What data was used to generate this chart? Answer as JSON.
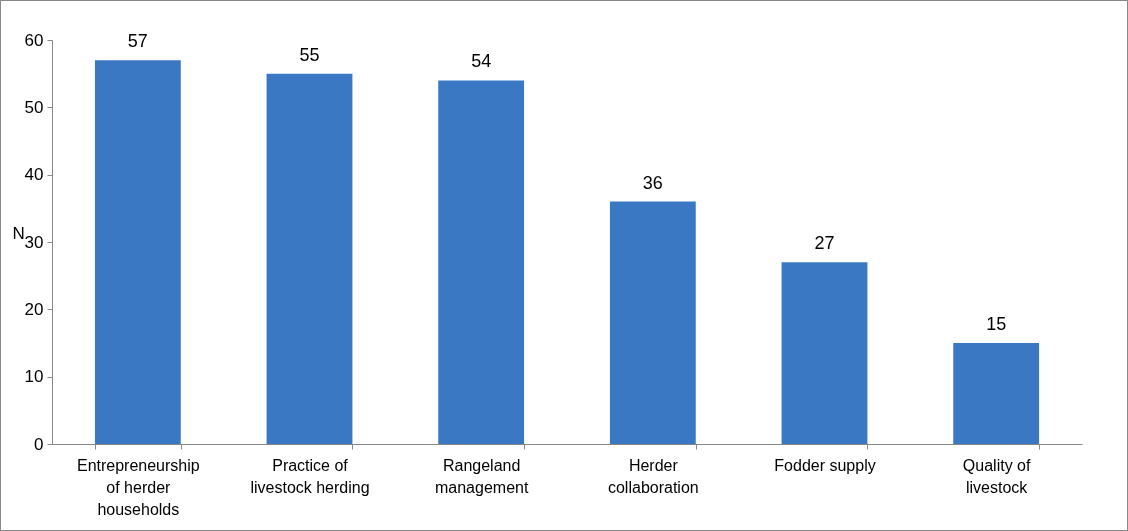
{
  "chart_data": {
    "type": "bar",
    "ylabel": "N",
    "categories": [
      "Entrepreneurship of herder households",
      "Practice of livestock herding",
      "Rangeland management",
      "Herder collaboration",
      "Fodder supply",
      "Quality of livestock"
    ],
    "values": [
      57,
      55,
      54,
      36,
      27,
      15
    ],
    "color": "#3a78c4",
    "ylim": [
      0,
      60
    ],
    "yticks": [
      0,
      10,
      20,
      30,
      40,
      50,
      60
    ],
    "grid": false,
    "data_labels": true
  }
}
